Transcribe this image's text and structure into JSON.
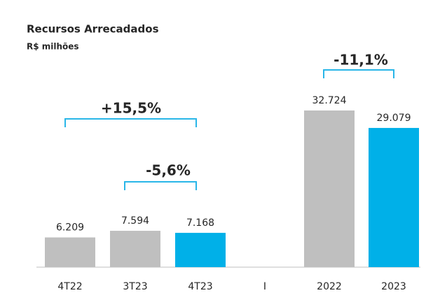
{
  "chart_data": {
    "type": "bar",
    "title": "Recursos Arrecadados",
    "subtitle": "R$ milhões",
    "categories": [
      "4T22",
      "3T23",
      "4T23",
      "I",
      "2022",
      "2023"
    ],
    "values": [
      6209,
      7594,
      7168,
      null,
      32724,
      29079
    ],
    "value_labels": [
      "6.209",
      "7.594",
      "7.168",
      null,
      "32.724",
      "29.079"
    ],
    "colors": [
      "#bfbfbf",
      "#bfbfbf",
      "#00b0e8",
      null,
      "#bfbfbf",
      "#00b0e8"
    ],
    "annotations": [
      "+15,5%",
      "-5,6%",
      "-11,1%"
    ]
  }
}
